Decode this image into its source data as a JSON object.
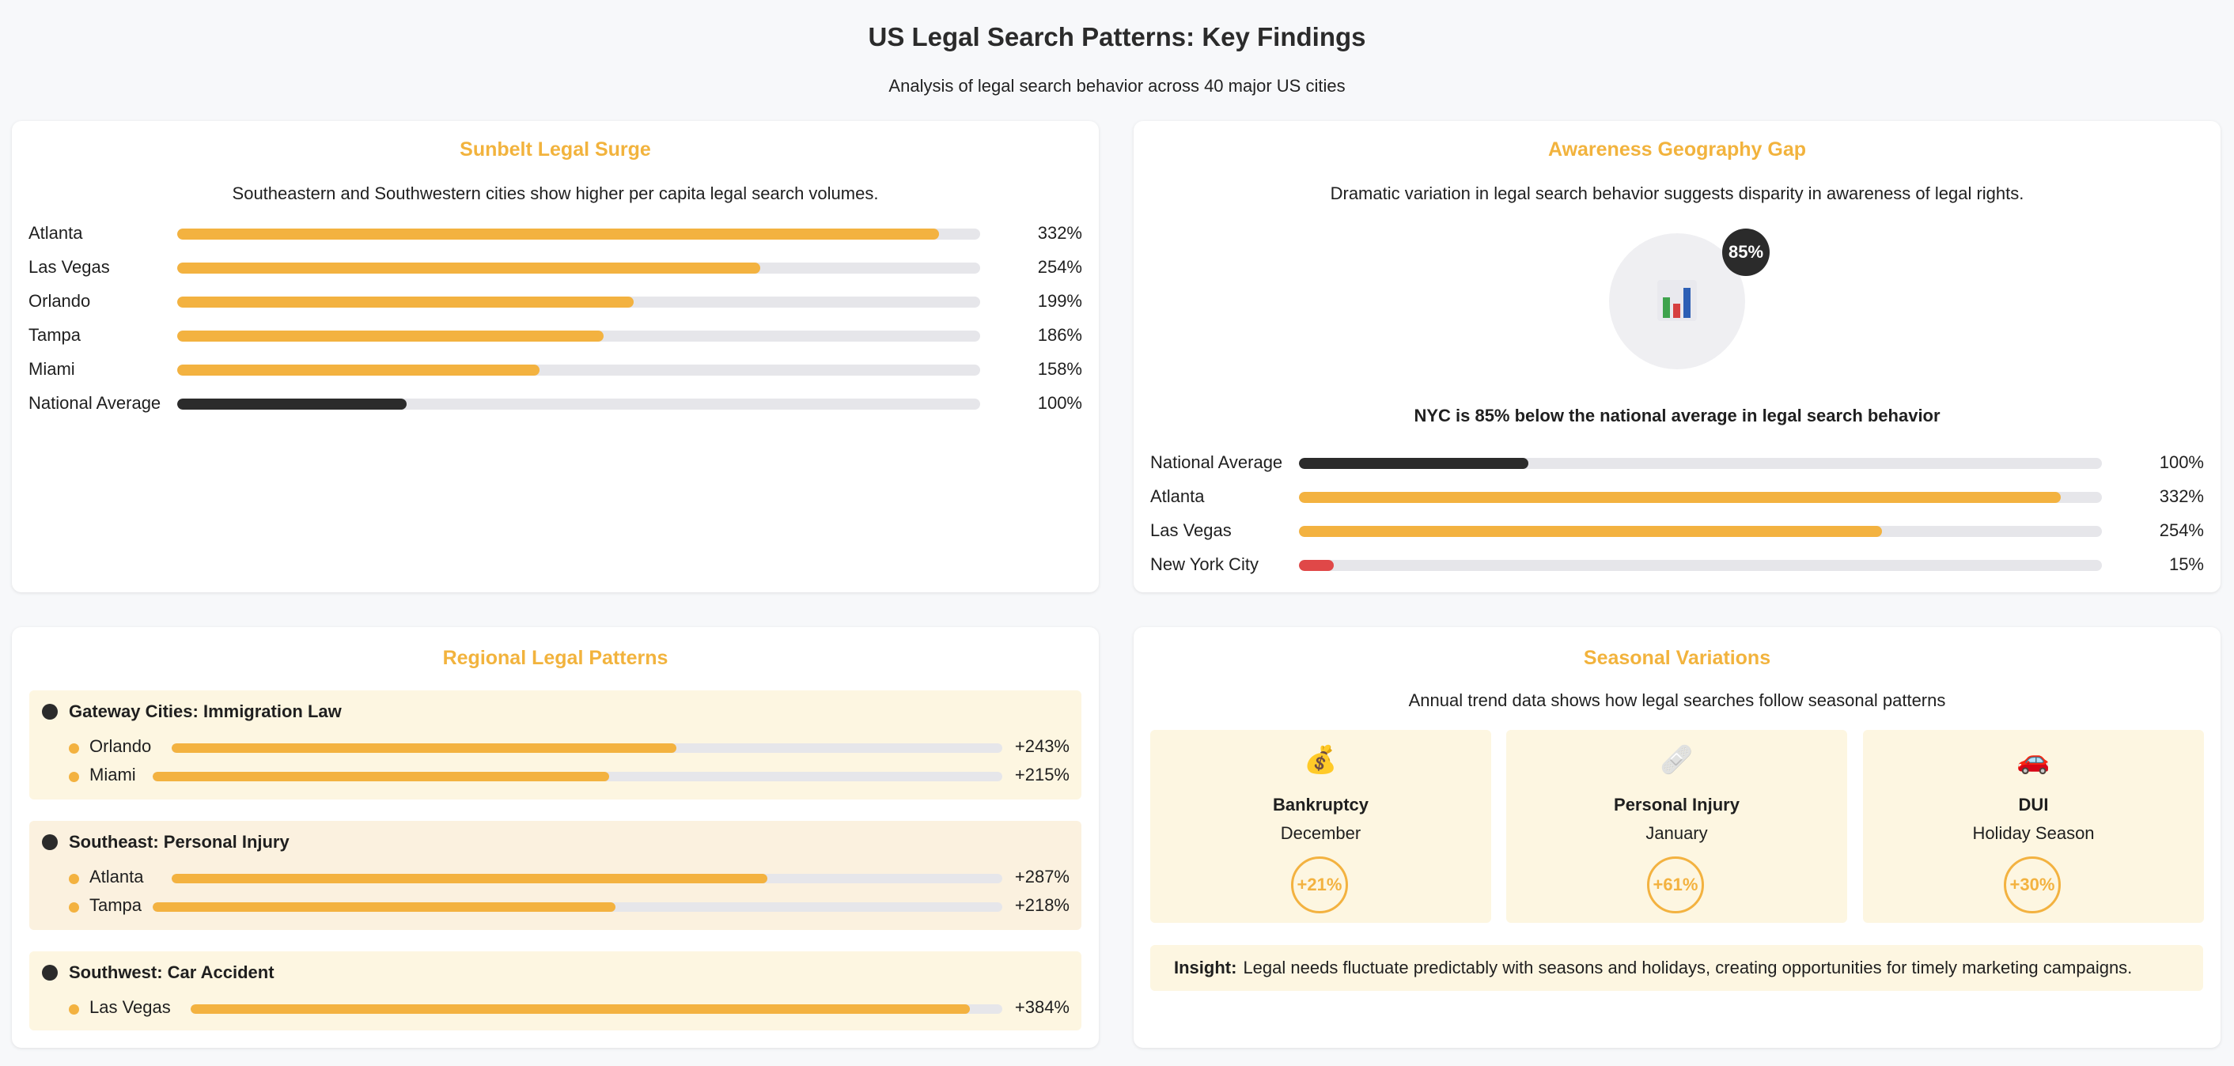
{
  "header": {
    "title": "US Legal Search Patterns: Key Findings",
    "subtitle": "Analysis of legal search behavior across 40 major US cities"
  },
  "colors": {
    "accent": "#f3b240",
    "dark": "#2b2b2b",
    "alert": "#e04848",
    "track": "#e6e6ea",
    "panel": "#fdf6e1"
  },
  "chart_data": [
    {
      "type": "bar",
      "title": "Sunbelt Legal Surge",
      "subtitle": "Southeastern and Southwestern cities show higher per capita legal search volumes.",
      "categories": [
        "Atlanta",
        "Las Vegas",
        "Orlando",
        "Tampa",
        "Miami",
        "National Average"
      ],
      "values": [
        332,
        254,
        199,
        186,
        158,
        100
      ],
      "labels": [
        "332%",
        "254%",
        "199%",
        "186%",
        "158%",
        "100%"
      ],
      "unit": "%",
      "xlim": [
        0,
        350
      ]
    },
    {
      "type": "bar",
      "title": "Awareness Geography Gap",
      "subtitle": "Dramatic variation in legal search behavior suggests disparity in awareness of legal rights.",
      "badge": "85%",
      "note": "NYC is 85% below the national average in legal search behavior",
      "icon": "bar-chart-icon",
      "categories": [
        "National Average",
        "Atlanta",
        "Las Vegas",
        "New York City"
      ],
      "values": [
        100,
        332,
        254,
        15
      ],
      "labels": [
        "100%",
        "332%",
        "254%",
        "15%"
      ],
      "unit": "%",
      "xlim": [
        0,
        350
      ]
    },
    {
      "type": "bar",
      "title": "Regional Legal Patterns",
      "groups": [
        {
          "name": "Gateway Cities: Immigration Law",
          "categories": [
            "Orlando",
            "Miami"
          ],
          "values": [
            243,
            215
          ],
          "labels": [
            "+243%",
            "+215%"
          ]
        },
        {
          "name": "Southeast: Personal Injury",
          "categories": [
            "Atlanta",
            "Tampa"
          ],
          "values": [
            287,
            218
          ],
          "labels": [
            "+287%",
            "+218%"
          ]
        },
        {
          "name": "Southwest: Car Accident",
          "categories": [
            "Las Vegas"
          ],
          "values": [
            384
          ],
          "labels": [
            "+384%"
          ]
        }
      ]
    }
  ],
  "seasonal": {
    "title": "Seasonal Variations",
    "subtitle": "Annual trend data shows how legal searches follow seasonal patterns",
    "items": [
      {
        "icon": "money-bag-icon",
        "glyph": "💰",
        "name": "Bankruptcy",
        "when": "December",
        "change": "+21%"
      },
      {
        "icon": "bandage-icon",
        "glyph": "🩹",
        "name": "Personal Injury",
        "when": "January",
        "change": "+61%"
      },
      {
        "icon": "car-icon",
        "glyph": "🚗",
        "name": "DUI",
        "when": "Holiday Season",
        "change": "+30%"
      }
    ],
    "insight_label": "Insight:",
    "insight_text": "Legal needs fluctuate predictably with seasons and holidays, creating opportunities for timely marketing campaigns."
  }
}
